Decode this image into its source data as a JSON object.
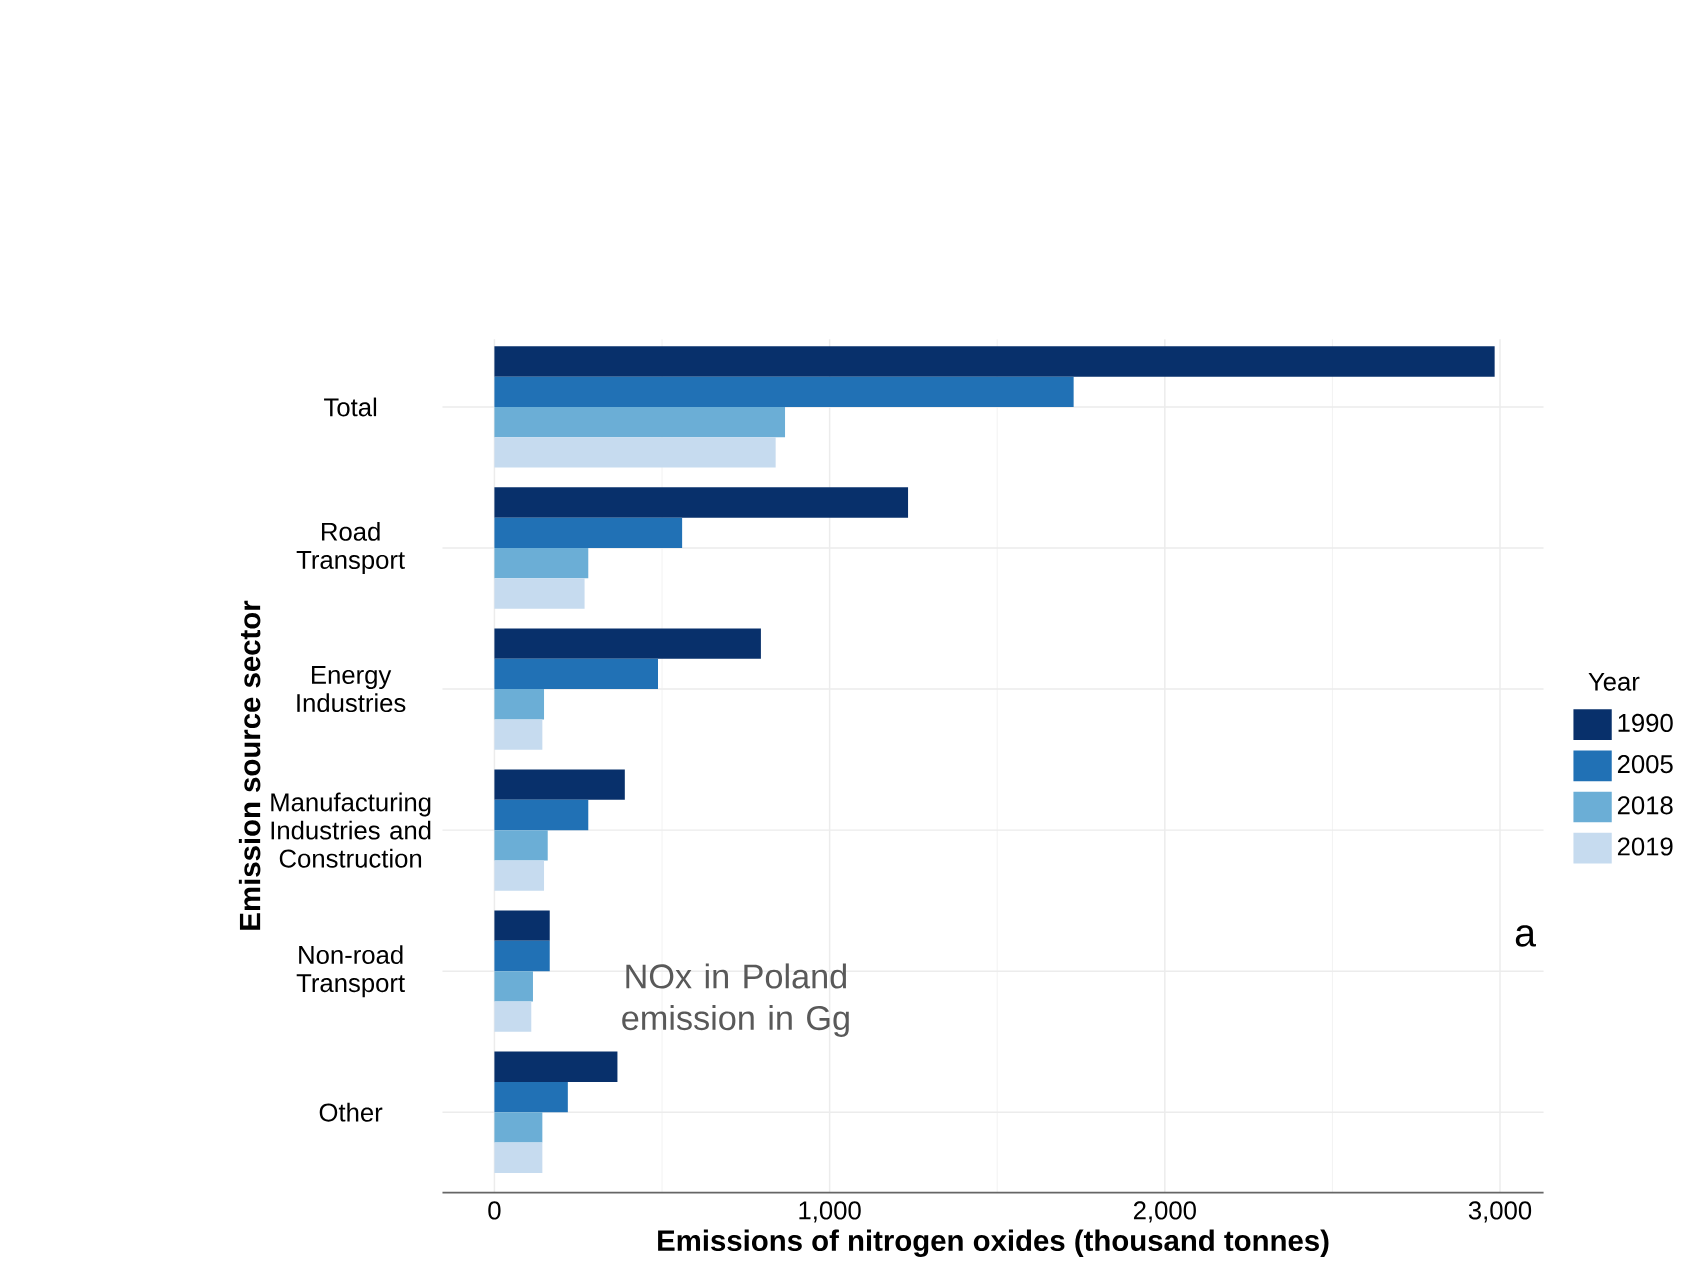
{
  "chart_data": {
    "type": "bar",
    "orientation": "horizontal",
    "xlabel": "Emissions of nitrogen oxides (thousand tonnes)",
    "ylabel": "Emission source sector",
    "legend_title": "Year",
    "categories": [
      "Total",
      "Road Transport",
      "Energy Industries",
      "Manufacturing Industries and Construction",
      "Non-road Transport",
      "Other"
    ],
    "series": [
      {
        "name": "1990",
        "color": "#08306b",
        "values": [
          2984,
          1234,
          795,
          389,
          165,
          367
        ]
      },
      {
        "name": "2005",
        "color": "#2171b5",
        "values": [
          1728,
          560,
          488,
          280,
          165,
          219
        ]
      },
      {
        "name": "2018",
        "color": "#6baed6",
        "values": [
          867,
          280,
          148,
          159,
          115,
          143
        ]
      },
      {
        "name": "2019",
        "color": "#c6dbef",
        "values": [
          839,
          269,
          143,
          148,
          110,
          143
        ]
      }
    ],
    "xlim": [
      -155,
      3130
    ],
    "xticks": [
      0,
      {
        "value": 1000,
        "label": "1,000"
      },
      {
        "value": 2000,
        "label": "2,000"
      },
      {
        "value": 3000,
        "label": "3,000"
      }
    ],
    "grid": true,
    "legend": "right",
    "annotations": [
      "NOx in Poland emission in Gg",
      "a"
    ]
  }
}
